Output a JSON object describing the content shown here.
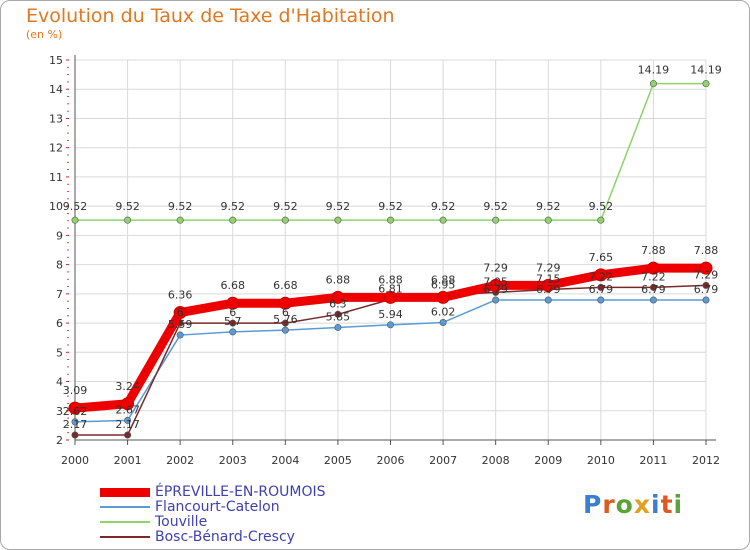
{
  "chart_data": {
    "type": "line",
    "title": "Evolution du Taux de Taxe d'Habitation",
    "ylabel": "(en %)",
    "xlabel": "",
    "ylim": [
      2,
      15
    ],
    "yticks": [
      "2",
      "3",
      "4",
      "5",
      "6",
      "7",
      "8",
      "9",
      "10",
      "11",
      "12",
      "13",
      "14",
      "15"
    ],
    "categories": [
      "2000",
      "2001",
      "2002",
      "2003",
      "2004",
      "2005",
      "2006",
      "2007",
      "2008",
      "2009",
      "2010",
      "2011",
      "2012"
    ],
    "series": [
      {
        "name": "ÉPREVILLE-EN-ROUMOIS",
        "color": "#ee0000",
        "values": [
          3.09,
          3.24,
          6.36,
          6.68,
          6.68,
          6.88,
          6.88,
          6.88,
          7.29,
          7.29,
          7.65,
          7.88,
          7.88
        ],
        "labels": [
          "3.09",
          "3.24",
          "6.36",
          "6.68",
          "6.68",
          "6.88",
          "6.88",
          "6.88",
          "7.29",
          "7.29",
          "7.65",
          "7.88",
          "7.88"
        ]
      },
      {
        "name": "Flancourt-Catelon",
        "color": "#5a9bd5",
        "values": [
          2.62,
          2.67,
          5.59,
          5.7,
          5.76,
          5.85,
          5.94,
          6.02,
          6.79,
          6.79,
          6.79,
          6.79,
          6.79
        ],
        "labels": [
          "2.62",
          "2.67",
          "5.59",
          "5.7",
          "5.76",
          "5.85",
          "5.94",
          "6.02",
          "6.79",
          "6.79",
          "6.79",
          "6.79",
          "6.79"
        ]
      },
      {
        "name": "Touville",
        "color": "#8fd36a",
        "values": [
          9.52,
          9.52,
          9.52,
          9.52,
          9.52,
          9.52,
          9.52,
          9.52,
          9.52,
          9.52,
          9.52,
          14.19,
          14.19
        ],
        "labels": [
          "9.52",
          "9.52",
          "9.52",
          "9.52",
          "9.52",
          "9.52",
          "9.52",
          "9.52",
          "9.52",
          "9.52",
          "9.52",
          "14.19",
          "14.19"
        ]
      },
      {
        "name": "Bosc-Bénard-Crescy",
        "color": "#7a2a2a",
        "values": [
          2.17,
          2.17,
          6.0,
          6.0,
          6.0,
          6.3,
          6.81,
          6.95,
          7.05,
          7.15,
          7.22,
          7.22,
          7.29
        ],
        "labels": [
          "2.17",
          "2.17",
          "6",
          "6",
          "6",
          "6.3",
          "6.81",
          "6.95",
          "7.05",
          "7.15",
          "7.22",
          "7.22",
          "7.29"
        ]
      }
    ]
  },
  "logo": {
    "text": "Proxiti",
    "letter_colors": [
      "#3a7fd0",
      "#e05a20",
      "#5aa33a",
      "#e0a020",
      "#3a7fd0",
      "#e05a20",
      "#5aa33a"
    ]
  },
  "style": {
    "grid_color": "#d9d9d9",
    "title_color": "#e07820",
    "legend_text_color": "#4040b0"
  }
}
